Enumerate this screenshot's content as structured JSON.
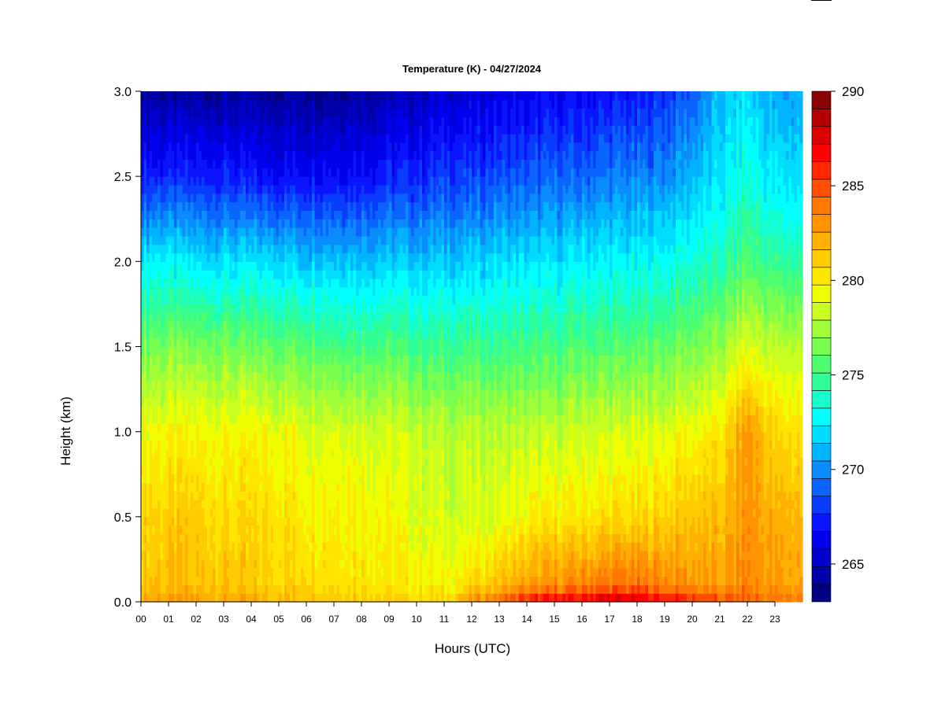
{
  "chart_data": {
    "type": "heatmap",
    "title": "Temperature (K) - 04/27/2024",
    "xlabel": "Hours (UTC)",
    "ylabel": "Height (km)",
    "x_ticks": [
      "00",
      "01",
      "02",
      "03",
      "04",
      "05",
      "06",
      "07",
      "08",
      "09",
      "10",
      "11",
      "12",
      "13",
      "14",
      "15",
      "16",
      "17",
      "18",
      "19",
      "20",
      "21",
      "22",
      "23"
    ],
    "xlim": [
      0,
      24
    ],
    "y_ticks": [
      "0.0",
      "0.5",
      "1.0",
      "1.5",
      "2.0",
      "2.5",
      "3.0"
    ],
    "ylim": [
      0,
      3
    ],
    "colorbar": {
      "label_ticks": [
        "265",
        "270",
        "275",
        "280",
        "285",
        "290"
      ],
      "range": [
        263,
        290
      ],
      "levels": 27,
      "colors": [
        "#000080",
        "#0000aa",
        "#0000cd",
        "#0000ee",
        "#0a14ff",
        "#0a3cff",
        "#0a64ff",
        "#0a8cff",
        "#00b4ff",
        "#00dcff",
        "#00ffff",
        "#14ffcc",
        "#30ff99",
        "#50ff70",
        "#78ff50",
        "#a0ff38",
        "#c8ff20",
        "#f0ff00",
        "#ffe600",
        "#ffcc00",
        "#ffb000",
        "#ff9400",
        "#ff7800",
        "#ff5000",
        "#ff2800",
        "#ff0000",
        "#dc0000",
        "#b40000",
        "#8b0000"
      ]
    },
    "hours": [
      0,
      1,
      2,
      3,
      4,
      5,
      6,
      7,
      8,
      9,
      10,
      11,
      12,
      13,
      14,
      15,
      16,
      17,
      18,
      19,
      20,
      21,
      22,
      23,
      24
    ],
    "heights_km": [
      0.0,
      0.1,
      0.5,
      1.0,
      1.5,
      2.0,
      2.5,
      3.0
    ],
    "temperature_profiles_K": [
      [
        282.5,
        281.5,
        281.0,
        279.5,
        276.5,
        272.5,
        267.5,
        264.5
      ],
      [
        282.5,
        281.5,
        281.0,
        279.5,
        276.5,
        272.5,
        267.5,
        264.0
      ],
      [
        282.5,
        281.5,
        281.0,
        279.5,
        276.5,
        272.0,
        267.5,
        264.0
      ],
      [
        282.5,
        281.5,
        280.5,
        279.5,
        276.5,
        272.0,
        267.5,
        264.0
      ],
      [
        282.0,
        281.0,
        280.5,
        279.5,
        276.0,
        272.0,
        267.0,
        264.0
      ],
      [
        282.0,
        281.0,
        280.5,
        279.5,
        276.0,
        272.0,
        267.0,
        264.0
      ],
      [
        282.0,
        281.0,
        280.0,
        279.0,
        276.0,
        271.5,
        267.0,
        264.0
      ],
      [
        281.5,
        280.5,
        280.0,
        279.0,
        275.5,
        271.5,
        267.0,
        264.0
      ],
      [
        281.5,
        280.5,
        280.0,
        279.0,
        275.5,
        271.5,
        267.0,
        264.5
      ],
      [
        281.0,
        280.0,
        279.5,
        278.5,
        275.5,
        271.5,
        267.5,
        264.5
      ],
      [
        281.0,
        280.0,
        279.0,
        278.5,
        275.0,
        271.5,
        267.5,
        265.0
      ],
      [
        281.0,
        279.5,
        278.5,
        278.0,
        275.0,
        271.5,
        268.0,
        265.5
      ],
      [
        283.0,
        280.5,
        278.5,
        278.0,
        275.0,
        271.5,
        268.0,
        265.5
      ],
      [
        284.5,
        281.5,
        279.0,
        278.0,
        275.0,
        272.0,
        268.5,
        266.0
      ],
      [
        286.5,
        282.5,
        279.5,
        278.0,
        275.0,
        272.0,
        268.5,
        266.0
      ],
      [
        287.0,
        283.0,
        280.0,
        278.0,
        275.0,
        272.0,
        269.0,
        266.5
      ],
      [
        287.5,
        283.5,
        280.0,
        278.5,
        275.5,
        272.5,
        269.0,
        266.5
      ],
      [
        288.0,
        284.0,
        280.5,
        278.5,
        275.5,
        272.5,
        269.5,
        267.0
      ],
      [
        287.5,
        284.0,
        280.5,
        278.5,
        275.5,
        272.5,
        269.5,
        267.0
      ],
      [
        287.0,
        283.5,
        281.0,
        279.0,
        276.0,
        273.0,
        270.0,
        268.0
      ],
      [
        286.0,
        283.0,
        281.5,
        279.5,
        276.5,
        273.5,
        271.0,
        269.0
      ],
      [
        285.0,
        282.5,
        281.5,
        280.0,
        277.0,
        274.0,
        272.0,
        271.0
      ],
      [
        284.5,
        283.5,
        283.0,
        283.0,
        279.0,
        275.5,
        273.5,
        272.0
      ],
      [
        284.0,
        282.5,
        282.0,
        280.5,
        278.0,
        274.5,
        272.0,
        270.5
      ],
      [
        284.0,
        282.5,
        282.0,
        280.5,
        278.0,
        274.5,
        272.0,
        270.5
      ]
    ]
  }
}
